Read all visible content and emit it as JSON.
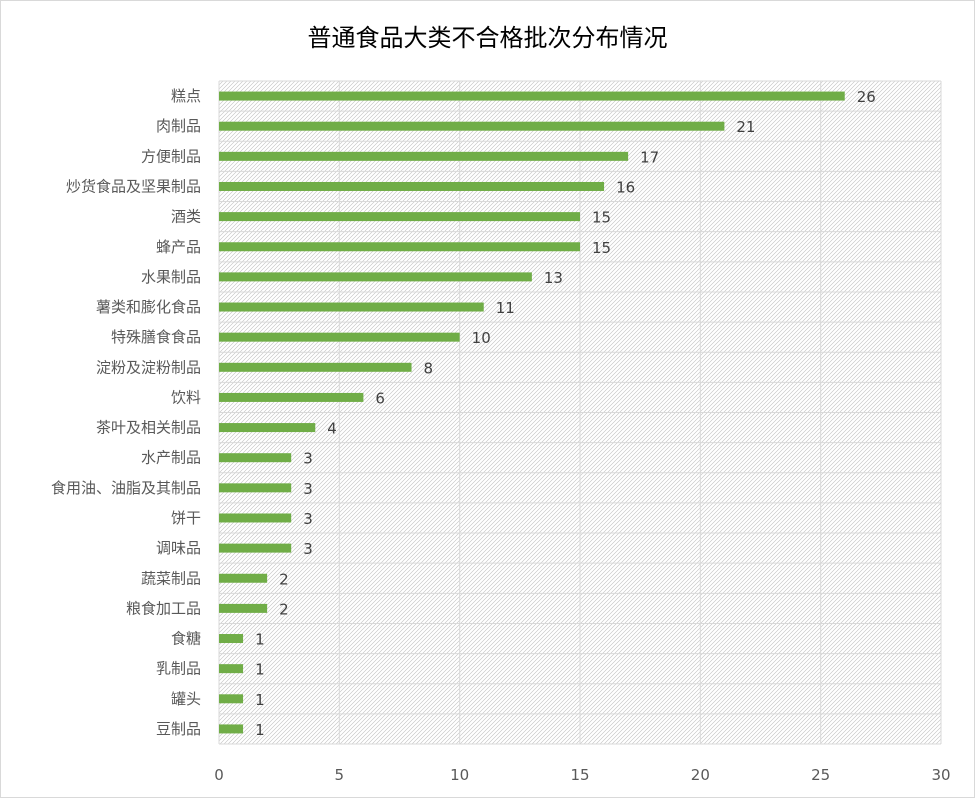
{
  "chart_data": {
    "type": "bar",
    "orientation": "horizontal",
    "title": "普通食品大类不合格批次分布情况",
    "categories": [
      "糕点",
      "肉制品",
      "方便制品",
      "炒货食品及坚果制品",
      "酒类",
      "蜂产品",
      "水果制品",
      "薯类和膨化食品",
      "特殊膳食食品",
      "淀粉及淀粉制品",
      "饮料",
      "茶叶及相关制品",
      "水产制品",
      "食用油、油脂及其制品",
      "饼干",
      "调味品",
      "蔬菜制品",
      "粮食加工品",
      "食糖",
      "乳制品",
      "罐头",
      "豆制品"
    ],
    "values": [
      26,
      21,
      17,
      16,
      15,
      15,
      13,
      11,
      10,
      8,
      6,
      4,
      3,
      3,
      3,
      3,
      2,
      2,
      1,
      1,
      1,
      1
    ],
    "value_labels": [
      "26",
      "21",
      "17",
      "16",
      "15",
      "15",
      "13",
      "11",
      "10",
      "8",
      "6",
      "4",
      "3",
      "3",
      "3",
      "3",
      "2",
      "2",
      "1",
      "1",
      "1",
      "1"
    ],
    "xlim": [
      0,
      30
    ],
    "xticks": [
      0,
      5,
      10,
      15,
      20,
      25,
      30
    ],
    "xtick_labels": [
      "0",
      "5",
      "10",
      "15",
      "20",
      "25",
      "30"
    ],
    "xlabel": "",
    "ylabel": "",
    "grid": true,
    "plot_background": "hatched",
    "legend": "none",
    "colors": {
      "bar": "#70ad47",
      "grid": "#d9d9d9",
      "hatch": "#bfbfbf",
      "label": "#595959",
      "value_label": "#404040"
    }
  }
}
